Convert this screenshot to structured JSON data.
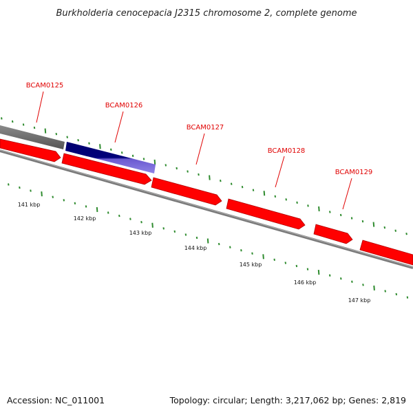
{
  "title": "Burkholderia cenocepacia J2315 chromosome 2, complete genome",
  "footer": {
    "accession": "Accession: NC_011001",
    "summary": "Topology: circular; Length: 3,217,062 bp; Genes: 2,819"
  },
  "colors": {
    "forward_gene": "#ff0000",
    "forward_gene_edge": "#a00000",
    "reverse_gene_top": "#000080",
    "reverse_gene_bottom": "#7b68d8",
    "other_feature": "#666666",
    "backbone": "#808080",
    "tick": "#2e8b2e",
    "gene_label": "#e00000"
  },
  "genes": [
    {
      "label": "BCAM0125"
    },
    {
      "label": "BCAM0126"
    },
    {
      "label": "BCAM0127"
    },
    {
      "label": "BCAM0128"
    },
    {
      "label": "BCAM0129"
    }
  ],
  "kbp_labels": [
    "141 kbp",
    "142 kbp",
    "143 kbp",
    "144 kbp",
    "145 kbp",
    "146 kbp",
    "147 kbp"
  ]
}
